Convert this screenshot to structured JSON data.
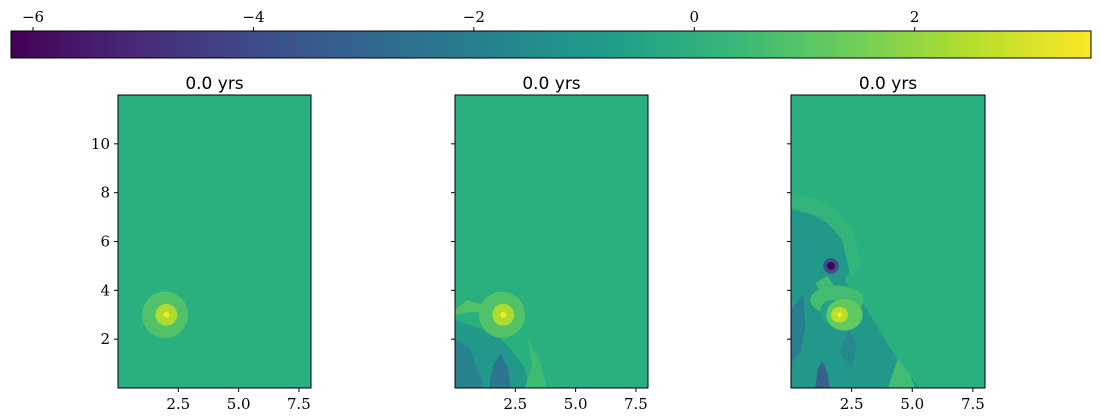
{
  "chart_data": {
    "type": "heatmap",
    "colormap": "viridis",
    "background_color": "#2aaf7f",
    "colorbar": {
      "orientation": "horizontal",
      "placement": "top",
      "range": [
        -6.2,
        3.6
      ],
      "ticks": [
        -6,
        -4,
        -2,
        0,
        2
      ],
      "tick_labels": [
        "−6",
        "−4",
        "−2",
        "0",
        "2"
      ]
    },
    "panels": [
      {
        "title": "0.0 yrs",
        "show_y_tick_labels": true,
        "xlim": [
          0,
          8
        ],
        "ylim": [
          0,
          12
        ],
        "x_ticks": [
          2.5,
          5.0,
          7.5
        ],
        "x_tick_labels": [
          "2.5",
          "5.0",
          "7.5"
        ],
        "y_ticks": [
          2,
          4,
          6,
          8,
          10
        ],
        "y_tick_labels": [
          "2",
          "4",
          "6",
          "8",
          "10"
        ],
        "features": [
          {
            "kind": "blob",
            "cx": 1.95,
            "cy": 3.0,
            "rx": 0.95,
            "ry": 0.95,
            "value": 0.9
          },
          {
            "kind": "blob",
            "cx": 2.0,
            "cy": 3.0,
            "rx": 0.45,
            "ry": 0.45,
            "value": 2.4
          },
          {
            "kind": "blob",
            "cx": 2.0,
            "cy": 3.0,
            "rx": 0.12,
            "ry": 0.12,
            "value": 3.6
          }
        ]
      },
      {
        "title": "0.0 yrs",
        "show_y_tick_labels": false,
        "xlim": [
          0,
          8
        ],
        "ylim": [
          0,
          12
        ],
        "x_ticks": [
          2.5,
          5.0,
          7.5
        ],
        "x_tick_labels": [
          "2.5",
          "5.0",
          "7.5"
        ],
        "y_ticks": [
          2,
          4,
          6,
          8,
          10
        ],
        "y_tick_labels": [
          "2",
          "4",
          "6",
          "8",
          "10"
        ],
        "features": [
          {
            "kind": "path",
            "value": -1.0,
            "points": [
              [
                0,
                0
              ],
              [
                0,
                2.8
              ],
              [
                0.8,
                2.5
              ],
              [
                1.6,
                2.3
              ],
              [
                2.3,
                1.6
              ],
              [
                2.9,
                0.8
              ],
              [
                3.1,
                0
              ]
            ]
          },
          {
            "kind": "path",
            "value": -1.8,
            "points": [
              [
                0,
                0
              ],
              [
                0,
                2.0
              ],
              [
                0.6,
                1.6
              ],
              [
                1.0,
                0.6
              ],
              [
                1.2,
                0
              ]
            ]
          },
          {
            "kind": "path",
            "value": -2.4,
            "points": [
              [
                1.4,
                0
              ],
              [
                1.6,
                1.0
              ],
              [
                1.9,
                1.4
              ],
              [
                2.2,
                0.8
              ],
              [
                2.3,
                0
              ]
            ]
          },
          {
            "kind": "path",
            "value": 0.5,
            "points": [
              [
                2.9,
                0
              ],
              [
                3.2,
                1.0
              ],
              [
                3.0,
                2.0
              ],
              [
                3.5,
                1.2
              ],
              [
                3.8,
                0
              ]
            ]
          },
          {
            "kind": "path",
            "value": 0.9,
            "points": [
              [
                0,
                3.2
              ],
              [
                0.5,
                3.6
              ],
              [
                1.2,
                3.4
              ],
              [
                1.3,
                3.1
              ],
              [
                0.6,
                3.1
              ],
              [
                0,
                3.0
              ]
            ]
          },
          {
            "kind": "blob",
            "cx": 1.95,
            "cy": 3.0,
            "rx": 0.95,
            "ry": 0.95,
            "value": 0.9
          },
          {
            "kind": "blob",
            "cx": 2.0,
            "cy": 3.0,
            "rx": 0.45,
            "ry": 0.45,
            "value": 2.4
          },
          {
            "kind": "blob",
            "cx": 2.0,
            "cy": 3.0,
            "rx": 0.12,
            "ry": 0.12,
            "value": 3.6
          }
        ]
      },
      {
        "title": "0.0 yrs",
        "show_y_tick_labels": false,
        "xlim": [
          0,
          8
        ],
        "ylim": [
          0,
          12
        ],
        "x_ticks": [
          2.5,
          5.0,
          7.5
        ],
        "x_tick_labels": [
          "2.5",
          "5.0",
          "7.5"
        ],
        "y_ticks": [
          2,
          4,
          6,
          8,
          10
        ],
        "y_tick_labels": [
          "2",
          "4",
          "6",
          "8",
          "10"
        ],
        "features": [
          {
            "kind": "path",
            "value": -1.0,
            "points": [
              [
                0,
                0
              ],
              [
                0,
                7.3
              ],
              [
                0.9,
                7.1
              ],
              [
                2.1,
                6.4
              ],
              [
                2.6,
                5.1
              ],
              [
                2.2,
                4.4
              ],
              [
                2.9,
                3.6
              ],
              [
                3.5,
                2.6
              ],
              [
                4.3,
                1.3
              ],
              [
                5.3,
                0
              ]
            ]
          },
          {
            "kind": "path",
            "value": -2.0,
            "points": [
              [
                0,
                1.0
              ],
              [
                0,
                3.2
              ],
              [
                0.5,
                3.8
              ],
              [
                0.6,
                2.5
              ],
              [
                0.4,
                1.5
              ]
            ]
          },
          {
            "kind": "path",
            "value": -3.2,
            "points": [
              [
                1.0,
                0
              ],
              [
                1.1,
                0.8
              ],
              [
                1.3,
                1.1
              ],
              [
                1.5,
                0.6
              ],
              [
                1.6,
                0
              ]
            ]
          },
          {
            "kind": "path",
            "value": 0.6,
            "points": [
              [
                4.0,
                0
              ],
              [
                4.4,
                1.2
              ],
              [
                4.9,
                0.6
              ],
              [
                5.1,
                0
              ]
            ]
          },
          {
            "kind": "path",
            "value": -1.6,
            "points": [
              [
                2.0,
                1.5
              ],
              [
                2.4,
                2.4
              ],
              [
                2.7,
                1.8
              ],
              [
                2.5,
                0.8
              ]
            ]
          },
          {
            "kind": "path",
            "value": 0.2,
            "points": [
              [
                0,
                7.9
              ],
              [
                0.8,
                7.8
              ],
              [
                1.9,
                7.3
              ],
              [
                2.6,
                6.4
              ],
              [
                2.9,
                5.1
              ],
              [
                2.5,
                4.5
              ],
              [
                2.3,
                5.2
              ],
              [
                2.1,
                6.1
              ],
              [
                1.3,
                7.0
              ],
              [
                0,
                7.4
              ]
            ]
          },
          {
            "kind": "path",
            "value": 0.5,
            "points": [
              [
                1.0,
                4.3
              ],
              [
                1.5,
                4.6
              ],
              [
                1.9,
                4.0
              ],
              [
                1.4,
                3.6
              ]
            ]
          },
          {
            "kind": "blob",
            "cx": 1.9,
            "cy": 3.6,
            "rx": 1.1,
            "ry": 0.6,
            "value": 0.6
          },
          {
            "kind": "blob",
            "cx": 1.7,
            "cy": 3.1,
            "rx": 0.5,
            "ry": 0.5,
            "value": -0.6
          },
          {
            "kind": "blob",
            "cx": 2.2,
            "cy": 3.0,
            "rx": 0.75,
            "ry": 0.65,
            "value": 1.2
          },
          {
            "kind": "blob",
            "cx": 2.0,
            "cy": 3.0,
            "rx": 0.35,
            "ry": 0.32,
            "value": 2.6
          },
          {
            "kind": "blob",
            "cx": 2.0,
            "cy": 3.0,
            "rx": 0.1,
            "ry": 0.1,
            "value": 3.6
          },
          {
            "kind": "blob",
            "cx": 1.65,
            "cy": 5.0,
            "rx": 0.32,
            "ry": 0.32,
            "value": -3.8
          },
          {
            "kind": "blob",
            "cx": 1.65,
            "cy": 5.0,
            "rx": 0.16,
            "ry": 0.16,
            "value": -6.2
          }
        ]
      }
    ]
  }
}
